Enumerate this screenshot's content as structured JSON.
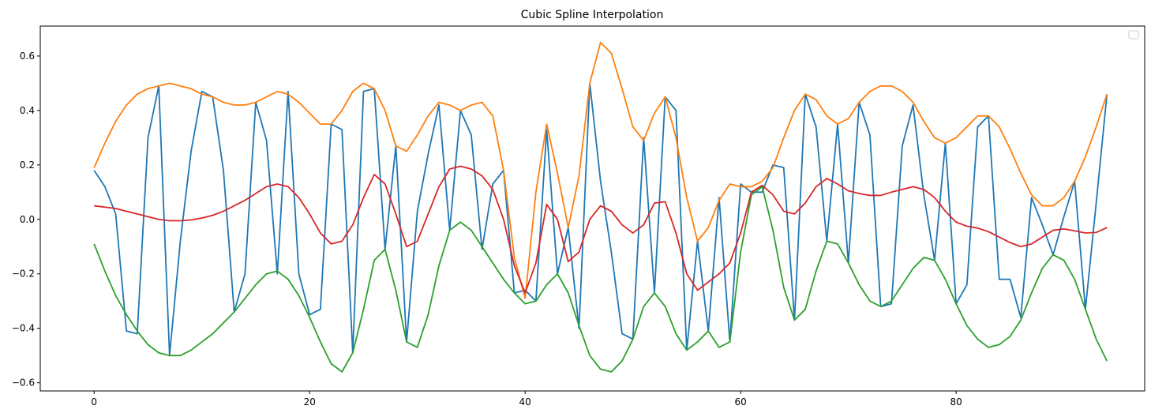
{
  "chart_data": {
    "type": "line",
    "title": "Cubic Spline Interpolation",
    "xlabel": "",
    "ylabel": "",
    "xlim": [
      -5,
      97.5
    ],
    "ylim": [
      -0.63,
      0.71
    ],
    "x_ticks": [
      0,
      20,
      40,
      60,
      80
    ],
    "y_ticks": [
      -0.6,
      -0.4,
      -0.2,
      0.0,
      0.2,
      0.4,
      0.6
    ],
    "x_tick_labels": [
      "0",
      "20",
      "40",
      "60",
      "80"
    ],
    "y_tick_labels": [
      "−0.6",
      "−0.4",
      "−0.2",
      "0.0",
      "0.2",
      "0.4",
      "0.6"
    ],
    "grid": false,
    "legend": {
      "placement": "top-right",
      "entries": []
    },
    "x": [
      0,
      1,
      2,
      3,
      4,
      5,
      6,
      7,
      8,
      9,
      10,
      11,
      12,
      13,
      14,
      15,
      16,
      17,
      18,
      19,
      20,
      21,
      22,
      23,
      24,
      25,
      26,
      27,
      28,
      29,
      30,
      31,
      32,
      33,
      34,
      35,
      36,
      37,
      38,
      39,
      40,
      41,
      42,
      43,
      44,
      45,
      46,
      47,
      48,
      49,
      50,
      51,
      52,
      53,
      54,
      55,
      56,
      57,
      58,
      59,
      60,
      61,
      62,
      63,
      64,
      65,
      66,
      67,
      68,
      69,
      70,
      71,
      72,
      73,
      74,
      75,
      76,
      77,
      78,
      79,
      80,
      81,
      82,
      83,
      84,
      85,
      86,
      87,
      88,
      89,
      90,
      91,
      92,
      93,
      94
    ],
    "series": [
      {
        "color": "#1f77b4",
        "values": [
          0.18,
          0.12,
          0.02,
          -0.41,
          -0.42,
          0.3,
          0.49,
          -0.5,
          -0.08,
          0.25,
          0.47,
          0.45,
          0.18,
          -0.34,
          -0.2,
          0.43,
          0.29,
          -0.2,
          0.47,
          -0.2,
          -0.35,
          -0.33,
          0.35,
          0.33,
          -0.49,
          0.47,
          0.48,
          -0.11,
          0.27,
          -0.45,
          0.03,
          0.24,
          0.42,
          -0.04,
          0.4,
          0.31,
          -0.11,
          0.13,
          0.18,
          -0.27,
          -0.26,
          -0.3,
          0.33,
          -0.2,
          -0.03,
          -0.4,
          0.5,
          0.14,
          -0.12,
          -0.42,
          -0.44,
          0.3,
          -0.27,
          0.45,
          0.4,
          -0.48,
          -0.08,
          -0.41,
          0.08,
          -0.45,
          0.13,
          0.1,
          0.1,
          0.2,
          0.19,
          -0.37,
          0.46,
          0.34,
          -0.08,
          0.35,
          -0.16,
          0.43,
          0.31,
          -0.32,
          -0.31,
          0.27,
          0.42,
          0.09,
          -0.15,
          0.28,
          -0.31,
          -0.24,
          0.34,
          0.38,
          -0.22,
          -0.22,
          -0.36,
          0.08,
          -0.02,
          -0.13,
          0.01,
          0.14,
          -0.33,
          0.06,
          0.46
        ]
      },
      {
        "color": "#ff7f0e",
        "values": [
          0.19,
          0.28,
          0.36,
          0.42,
          0.46,
          0.48,
          0.49,
          0.5,
          0.49,
          0.48,
          0.46,
          0.45,
          0.43,
          0.42,
          0.42,
          0.43,
          0.45,
          0.47,
          0.46,
          0.43,
          0.39,
          0.35,
          0.35,
          0.4,
          0.47,
          0.5,
          0.48,
          0.4,
          0.27,
          0.25,
          0.31,
          0.38,
          0.43,
          0.42,
          0.4,
          0.42,
          0.43,
          0.38,
          0.18,
          -0.14,
          -0.29,
          0.1,
          0.35,
          0.17,
          -0.03,
          0.16,
          0.5,
          0.65,
          0.61,
          0.48,
          0.34,
          0.29,
          0.39,
          0.45,
          0.3,
          0.08,
          -0.08,
          -0.03,
          0.07,
          0.13,
          0.12,
          0.12,
          0.14,
          0.19,
          0.3,
          0.4,
          0.46,
          0.44,
          0.38,
          0.35,
          0.37,
          0.43,
          0.47,
          0.49,
          0.49,
          0.47,
          0.43,
          0.36,
          0.3,
          0.28,
          0.3,
          0.34,
          0.38,
          0.38,
          0.34,
          0.26,
          0.17,
          0.09,
          0.05,
          0.05,
          0.08,
          0.14,
          0.23,
          0.34,
          0.46
        ]
      },
      {
        "color": "#2ca02c",
        "values": [
          -0.09,
          -0.19,
          -0.28,
          -0.35,
          -0.41,
          -0.46,
          -0.49,
          -0.5,
          -0.5,
          -0.48,
          -0.45,
          -0.42,
          -0.38,
          -0.34,
          -0.29,
          -0.24,
          -0.2,
          -0.19,
          -0.22,
          -0.28,
          -0.36,
          -0.45,
          -0.53,
          -0.56,
          -0.49,
          -0.33,
          -0.15,
          -0.11,
          -0.26,
          -0.45,
          -0.47,
          -0.35,
          -0.17,
          -0.04,
          -0.01,
          -0.04,
          -0.1,
          -0.16,
          -0.22,
          -0.27,
          -0.31,
          -0.3,
          -0.24,
          -0.2,
          -0.27,
          -0.39,
          -0.5,
          -0.55,
          -0.56,
          -0.52,
          -0.44,
          -0.32,
          -0.27,
          -0.32,
          -0.42,
          -0.48,
          -0.45,
          -0.41,
          -0.47,
          -0.45,
          -0.12,
          0.09,
          0.12,
          -0.04,
          -0.25,
          -0.37,
          -0.33,
          -0.19,
          -0.08,
          -0.09,
          -0.16,
          -0.24,
          -0.3,
          -0.32,
          -0.3,
          -0.24,
          -0.18,
          -0.14,
          -0.15,
          -0.22,
          -0.31,
          -0.39,
          -0.44,
          -0.47,
          -0.46,
          -0.43,
          -0.37,
          -0.27,
          -0.18,
          -0.13,
          -0.15,
          -0.22,
          -0.33,
          -0.44,
          -0.52
        ]
      },
      {
        "color": "#d62728",
        "values": [
          0.05,
          0.045,
          0.04,
          0.03,
          0.02,
          0.01,
          0.0,
          -0.005,
          -0.005,
          -0.002,
          0.005,
          0.015,
          0.03,
          0.05,
          0.07,
          0.095,
          0.12,
          0.13,
          0.12,
          0.08,
          0.02,
          -0.05,
          -0.09,
          -0.08,
          -0.02,
          0.08,
          0.165,
          0.13,
          0.02,
          -0.1,
          -0.08,
          0.02,
          0.12,
          0.185,
          0.195,
          0.185,
          0.16,
          0.11,
          0.0,
          -0.17,
          -0.27,
          -0.16,
          0.055,
          0.0,
          -0.155,
          -0.12,
          0.0,
          0.05,
          0.03,
          -0.02,
          -0.05,
          -0.02,
          0.06,
          0.065,
          -0.05,
          -0.2,
          -0.26,
          -0.23,
          -0.2,
          -0.16,
          -0.05,
          0.1,
          0.125,
          0.09,
          0.03,
          0.02,
          0.06,
          0.12,
          0.15,
          0.13,
          0.105,
          0.095,
          0.088,
          0.088,
          0.1,
          0.11,
          0.12,
          0.11,
          0.08,
          0.03,
          -0.01,
          -0.025,
          -0.032,
          -0.045,
          -0.065,
          -0.085,
          -0.1,
          -0.09,
          -0.065,
          -0.04,
          -0.035,
          -0.042,
          -0.05,
          -0.048,
          -0.03
        ]
      }
    ]
  }
}
